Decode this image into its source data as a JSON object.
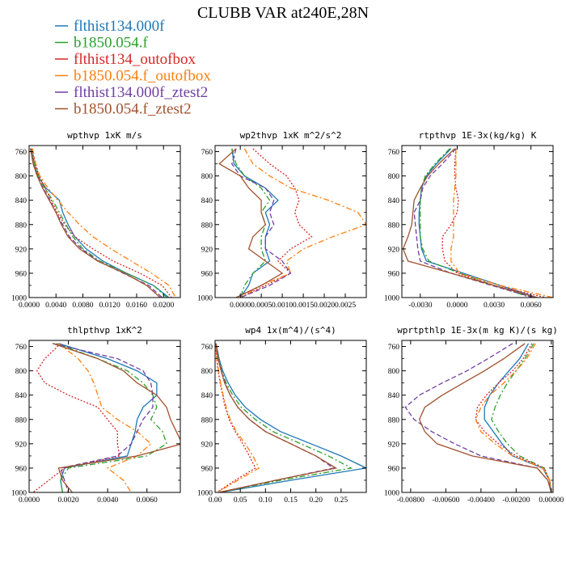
{
  "title": "CLUBB VAR at240E,28N",
  "colors": {
    "flthist134.000f": "#1f77b4",
    "b1850.054.f": "#2ca02c",
    "flthist134_outofbox": "#d62728",
    "b1850.054.f_outofbox": "#ff7f0e",
    "flthist134.000f_ztest2": "#7040a0",
    "b1850.054.f_ztest2": "#a0522d"
  },
  "legend": [
    {
      "name": "flthist134.000f",
      "dash": "solid"
    },
    {
      "name": "b1850.054.f",
      "dash": "solid"
    },
    {
      "name": "flthist134_outofbox",
      "dash": "solid"
    },
    {
      "name": "b1850.054.f_outofbox",
      "dash": "solid"
    },
    {
      "name": "flthist134.000f_ztest2",
      "dash": "solid"
    },
    {
      "name": "b1850.054.f_ztest2",
      "dash": "solid"
    }
  ],
  "chart_data": [
    {
      "type": "line",
      "title": "wpthvp  1xK m/s",
      "ylim": [
        1000,
        750
      ],
      "yticks": [
        "760",
        "800",
        "840",
        "880",
        "920",
        "960",
        "1000"
      ],
      "xlim": [
        0,
        0.0225
      ],
      "xticks": [
        {
          "v": 0,
          "label": "0.0000"
        },
        {
          "v": 0.004,
          "label": "0.0040"
        },
        {
          "v": 0.008,
          "label": "0.0080"
        },
        {
          "v": 0.012,
          "label": "0.0120"
        },
        {
          "v": 0.016,
          "label": "0.0160"
        },
        {
          "v": 0.02,
          "label": "0.0200"
        }
      ],
      "y": [
        755,
        780,
        800,
        820,
        840,
        860,
        880,
        900,
        920,
        940,
        960,
        980,
        1000
      ],
      "series": [
        {
          "name": "flthist134.000f",
          "dash": "solid",
          "x": [
            0.0003,
            0.0008,
            0.0013,
            0.0025,
            0.0045,
            0.005,
            0.0058,
            0.0068,
            0.0085,
            0.011,
            0.0145,
            0.0185,
            0.0208
          ]
        },
        {
          "name": "b1850.054.f",
          "dash": "dashdot",
          "x": [
            0.0003,
            0.0008,
            0.0014,
            0.0023,
            0.0035,
            0.0045,
            0.0055,
            0.0065,
            0.008,
            0.0105,
            0.0145,
            0.0185,
            0.0205
          ]
        },
        {
          "name": "flthist134_outofbox",
          "dash": "dot",
          "x": [
            0.0004,
            0.0009,
            0.0015,
            0.0024,
            0.0033,
            0.0042,
            0.0053,
            0.0068,
            0.0095,
            0.0125,
            0.0165,
            0.0198,
            0.0212
          ]
        },
        {
          "name": "b1850.054.f_outofbox",
          "dash": "dashdot",
          "x": [
            0.0005,
            0.001,
            0.0016,
            0.0028,
            0.0043,
            0.0058,
            0.0075,
            0.0095,
            0.0122,
            0.0152,
            0.0182,
            0.0208,
            0.0218
          ]
        },
        {
          "name": "flthist134.000f_ztest2",
          "dash": "dash",
          "x": [
            0.0002,
            0.0006,
            0.0012,
            0.0021,
            0.0031,
            0.004,
            0.005,
            0.006,
            0.0078,
            0.0103,
            0.014,
            0.0178,
            0.0198
          ]
        },
        {
          "name": "b1850.054.f_ztest2",
          "dash": "solid",
          "x": [
            0.0002,
            0.0006,
            0.0012,
            0.002,
            0.003,
            0.004,
            0.0048,
            0.0058,
            0.0075,
            0.0102,
            0.0142,
            0.0175,
            0.0195
          ]
        }
      ]
    },
    {
      "type": "line",
      "title": "wp2thvp  1xK m^2/s^2",
      "ylim": [
        1000,
        750
      ],
      "yticks": [
        "760",
        "800",
        "840",
        "880",
        "920",
        "960",
        "1000"
      ],
      "xlim": [
        -0.0006,
        0.003
      ],
      "xticks": [
        {
          "v": 0,
          "label": "0.0000"
        },
        {
          "v": 0.0005,
          "label": "0.0005"
        },
        {
          "v": 0.001,
          "label": "0.0010"
        },
        {
          "v": 0.0015,
          "label": "0.0015"
        },
        {
          "v": 0.002,
          "label": "0.0020"
        },
        {
          "v": 0.0025,
          "label": "0.0025"
        }
      ],
      "y": [
        755,
        780,
        800,
        820,
        840,
        860,
        880,
        900,
        920,
        940,
        960,
        980,
        1000
      ],
      "series": [
        {
          "name": "flthist134.000f",
          "dash": "solid",
          "x": [
            -0.0002,
            -0.00015,
            0.0001,
            0.0006,
            0.0009,
            0.0006,
            0.0007,
            0.0006,
            0.0006,
            0.0007,
            0.0003,
            0.0002,
            0
          ]
        },
        {
          "name": "b1850.054.f",
          "dash": "dashdot",
          "x": [
            -0.0002,
            -0.0001,
            0.0001,
            0.0005,
            0.0007,
            0.0005,
            0.0006,
            0.0005,
            0.0005,
            0.0006,
            0.0003,
            0.0001,
            0
          ]
        },
        {
          "name": "flthist134_outofbox",
          "dash": "dot",
          "x": [
            0.0003,
            0.0007,
            0.0011,
            0.0013,
            0.0014,
            0.0013,
            0.0014,
            0.0017,
            0.0012,
            0.0009,
            0.0012,
            0.0006,
            0
          ]
        },
        {
          "name": "b1850.054.f_outofbox",
          "dash": "dashdot",
          "x": [
            0.0001,
            0.0003,
            0.0007,
            0.0012,
            0.0021,
            0.0028,
            0.003,
            0.0022,
            0.0015,
            0.0011,
            0.0012,
            0.0005,
            0
          ]
        },
        {
          "name": "flthist134.000f_ztest2",
          "dash": "dash",
          "x": [
            -0.0001,
            -0.0002,
            0,
            0.0006,
            0.0008,
            0.0007,
            0.0008,
            0.0006,
            0.0006,
            0.001,
            0.0012,
            0.0007,
            0
          ]
        },
        {
          "name": "b1850.054.f_ztest2",
          "dash": "solid",
          "x": [
            -0.0001,
            -0.0005,
            0,
            0.0002,
            0.0005,
            0.0005,
            0.0006,
            0.0003,
            0.0002,
            0.0006,
            0.001,
            0.0005,
            -0.0001
          ]
        }
      ]
    },
    {
      "type": "line",
      "title": "rtpthvp  1E-3x(kg/kg) K",
      "ylim": [
        1000,
        750
      ],
      "yticks": [
        "760",
        "800",
        "840",
        "880",
        "920",
        "960",
        "1000"
      ],
      "xlim": [
        -0.0045,
        0.0078
      ],
      "xticks": [
        {
          "v": -0.003,
          "label": "-0.0030"
        },
        {
          "v": 0,
          "label": "0.0000"
        },
        {
          "v": 0.003,
          "label": "0.0030"
        },
        {
          "v": 0.006,
          "label": "0.0060"
        }
      ],
      "y": [
        755,
        780,
        800,
        820,
        840,
        860,
        880,
        900,
        920,
        940,
        960,
        980,
        1000
      ],
      "series": [
        {
          "name": "flthist134.000f",
          "dash": "solid",
          "x": [
            -0.0005,
            -0.0017,
            -0.0025,
            -0.0029,
            -0.003,
            -0.0031,
            -0.0031,
            -0.003,
            -0.0029,
            -0.0025,
            0.0005,
            0.0035,
            0.0065
          ]
        },
        {
          "name": "b1850.054.f",
          "dash": "dashdot",
          "x": [
            -0.0006,
            -0.0018,
            -0.0026,
            -0.0029,
            -0.003,
            -0.003,
            -0.003,
            -0.003,
            -0.0028,
            -0.0023,
            0.0002,
            0.003,
            0.006
          ]
        },
        {
          "name": "flthist134_outofbox",
          "dash": "dot",
          "x": [
            -0.0001,
            -0.0002,
            -0.0002,
            -0.0001,
            0.0001,
            0,
            -0.0005,
            -0.0012,
            -0.0012,
            -0.001,
            0,
            0.003,
            0.0072
          ]
        },
        {
          "name": "b1850.054.f_outofbox",
          "dash": "dashdot",
          "x": [
            -0.0001,
            -0.0001,
            -0.0001,
            -0.0002,
            -0.0003,
            -0.0003,
            -0.0003,
            -0.0003,
            -0.0005,
            -0.0005,
            0.0002,
            0.0035,
            0.0078
          ]
        },
        {
          "name": "flthist134.000f_ztest2",
          "dash": "dash",
          "x": [
            -0.0001,
            -0.0012,
            -0.0022,
            -0.0028,
            -0.003,
            -0.0035,
            -0.0034,
            -0.0033,
            -0.0032,
            -0.003,
            -0.0005,
            0.0028,
            0.0062
          ]
        },
        {
          "name": "b1850.054.f_ztest2",
          "dash": "solid",
          "x": [
            -0.0002,
            -0.0015,
            -0.0024,
            -0.003,
            -0.0035,
            -0.0036,
            -0.0037,
            -0.004,
            -0.0044,
            -0.004,
            -0.0005,
            0.003,
            0.0065
          ]
        }
      ]
    },
    {
      "type": "line",
      "title": "thlpthvp  1xK^2",
      "ylim": [
        1000,
        750
      ],
      "yticks": [
        "760",
        "800",
        "840",
        "880",
        "920",
        "960",
        "1000"
      ],
      "xlim": [
        0,
        0.0077
      ],
      "xticks": [
        {
          "v": 0,
          "label": "0.0000"
        },
        {
          "v": 0.002,
          "label": "0.0020"
        },
        {
          "v": 0.004,
          "label": "0.0040"
        },
        {
          "v": 0.006,
          "label": "0.0060"
        }
      ],
      "y": [
        755,
        780,
        800,
        820,
        840,
        860,
        880,
        900,
        920,
        940,
        960,
        980,
        1000
      ],
      "series": [
        {
          "name": "flthist134.000f",
          "dash": "solid",
          "x": [
            0.0015,
            0.004,
            0.0055,
            0.0065,
            0.0065,
            0.0058,
            0.0055,
            0.0054,
            0.0052,
            0.005,
            0.0018,
            0.0016,
            0.0017
          ]
        },
        {
          "name": "b1850.054.f",
          "dash": "dashdot",
          "x": [
            0.0014,
            0.0035,
            0.005,
            0.0058,
            0.0063,
            0.0065,
            0.0062,
            0.0068,
            0.007,
            0.006,
            0.002,
            0.0016,
            0.0017
          ]
        },
        {
          "name": "flthist134_outofbox",
          "dash": "dot",
          "x": [
            0.0016,
            0.0008,
            0.0004,
            0.0008,
            0.002,
            0.0035,
            0.004,
            0.0045,
            0.0045,
            0.0046,
            0.0018,
            0.001,
            0.0002
          ]
        },
        {
          "name": "b1850.054.f_outofbox",
          "dash": "dashdot",
          "x": [
            0.0015,
            0.0025,
            0.003,
            0.0033,
            0.0035,
            0.0037,
            0.0045,
            0.0055,
            0.0062,
            0.0055,
            0.004,
            0.0048,
            0.0052
          ]
        },
        {
          "name": "flthist134.000f_ztest2",
          "dash": "dash",
          "x": [
            0.0012,
            0.0045,
            0.0058,
            0.0062,
            0.0063,
            0.0063,
            0.0058,
            0.0055,
            0.0052,
            0.0045,
            0.0016,
            0.0018,
            0.002
          ]
        },
        {
          "name": "b1850.054.f_ztest2",
          "dash": "solid",
          "x": [
            0.0012,
            0.0035,
            0.0048,
            0.0055,
            0.0065,
            0.007,
            0.0072,
            0.0075,
            0.0078,
            0.0055,
            0.0015,
            0.0017,
            0.0022
          ]
        }
      ]
    },
    {
      "type": "line",
      "title": "wp4  1x(m^4)/(s^4)",
      "ylim": [
        1000,
        750
      ],
      "yticks": [
        "760",
        "800",
        "840",
        "880",
        "920",
        "960",
        "1000"
      ],
      "xlim": [
        0,
        0.3
      ],
      "xticks": [
        {
          "v": 0,
          "label": "0.00"
        },
        {
          "v": 0.05,
          "label": "0.05"
        },
        {
          "v": 0.1,
          "label": "0.10"
        },
        {
          "v": 0.15,
          "label": "0.15"
        },
        {
          "v": 0.2,
          "label": "0.20"
        },
        {
          "v": 0.25,
          "label": "0.25"
        }
      ],
      "y": [
        755,
        780,
        800,
        820,
        840,
        860,
        880,
        900,
        920,
        940,
        960,
        980,
        1000
      ],
      "series": [
        {
          "name": "flthist134.000f",
          "dash": "solid",
          "x": [
            0.002,
            0.008,
            0.015,
            0.026,
            0.04,
            0.06,
            0.09,
            0.13,
            0.19,
            0.25,
            0.3,
            0.15,
            0.01
          ]
        },
        {
          "name": "b1850.054.f",
          "dash": "dashdot",
          "x": [
            0.002,
            0.007,
            0.013,
            0.022,
            0.035,
            0.052,
            0.08,
            0.115,
            0.17,
            0.225,
            0.27,
            0.13,
            0.008
          ]
        },
        {
          "name": "flthist134_outofbox",
          "dash": "dot",
          "x": [
            0.001,
            0.003,
            0.006,
            0.01,
            0.015,
            0.02,
            0.028,
            0.04,
            0.055,
            0.068,
            0.08,
            0.04,
            0.003
          ]
        },
        {
          "name": "b1850.054.f_outofbox",
          "dash": "dashdot",
          "x": [
            0.001,
            0.004,
            0.007,
            0.011,
            0.016,
            0.022,
            0.03,
            0.042,
            0.06,
            0.075,
            0.087,
            0.045,
            0.004
          ]
        },
        {
          "name": "flthist134.000f_ztest2",
          "dash": "dash",
          "x": [
            0.002,
            0.006,
            0.012,
            0.02,
            0.03,
            0.045,
            0.068,
            0.1,
            0.15,
            0.2,
            0.235,
            0.12,
            0.007
          ]
        },
        {
          "name": "b1850.054.f_ztest2",
          "dash": "solid",
          "x": [
            0.002,
            0.006,
            0.012,
            0.019,
            0.03,
            0.045,
            0.068,
            0.1,
            0.15,
            0.2,
            0.24,
            0.12,
            0.007
          ]
        }
      ]
    },
    {
      "type": "line",
      "title": "wprtpthlp  1E-3x(m kg K)/(s kg)",
      "ylim": [
        1000,
        750
      ],
      "yticks": [
        "760",
        "800",
        "840",
        "880",
        "920",
        "960",
        "1000"
      ],
      "xlim": [
        -0.0085,
        0.0001
      ],
      "xticks": [
        {
          "v": -0.008,
          "label": "-0.00800"
        },
        {
          "v": -0.006,
          "label": "-0.00600"
        },
        {
          "v": -0.004,
          "label": "-0.00400"
        },
        {
          "v": -0.002,
          "label": "-0.00200"
        },
        {
          "v": 0,
          "label": "0.00000"
        }
      ],
      "y": [
        755,
        780,
        800,
        820,
        840,
        860,
        880,
        900,
        920,
        940,
        960,
        980,
        1000
      ],
      "series": [
        {
          "name": "flthist134.000f",
          "dash": "solid",
          "x": [
            -0.0013,
            -0.0018,
            -0.0024,
            -0.003,
            -0.0035,
            -0.0038,
            -0.0038,
            -0.0033,
            -0.0028,
            -0.0022,
            -0.0005,
            -0.0001,
            0
          ]
        },
        {
          "name": "b1850.054.f",
          "dash": "dashdot",
          "x": [
            -0.001,
            -0.0015,
            -0.002,
            -0.0025,
            -0.0029,
            -0.0032,
            -0.0034,
            -0.003,
            -0.0025,
            -0.0018,
            -0.0004,
            -0.0001,
            0
          ]
        },
        {
          "name": "flthist134_outofbox",
          "dash": "dot",
          "x": [
            -0.0011,
            -0.0016,
            -0.0022,
            -0.003,
            -0.0037,
            -0.0042,
            -0.0043,
            -0.0038,
            -0.003,
            -0.002,
            -0.0004,
            -0.0001,
            0
          ]
        },
        {
          "name": "b1850.054.f_outofbox",
          "dash": "dashdot",
          "x": [
            -0.0009,
            -0.0014,
            -0.002,
            -0.0027,
            -0.0035,
            -0.004,
            -0.0043,
            -0.004,
            -0.0032,
            -0.0022,
            -0.0005,
            -0.0001,
            0
          ]
        },
        {
          "name": "flthist134.000f_ztest2",
          "dash": "dash",
          "x": [
            -0.0022,
            -0.0036,
            -0.0048,
            -0.0062,
            -0.0075,
            -0.0083,
            -0.0078,
            -0.0068,
            -0.0055,
            -0.004,
            -0.0008,
            -0.0002,
            0
          ]
        },
        {
          "name": "b1850.054.f_ztest2",
          "dash": "solid",
          "x": [
            -0.0015,
            -0.0027,
            -0.0038,
            -0.005,
            -0.0062,
            -0.0072,
            -0.0075,
            -0.0072,
            -0.0065,
            -0.0045,
            -0.0008,
            -0.0002,
            0
          ]
        }
      ]
    }
  ]
}
